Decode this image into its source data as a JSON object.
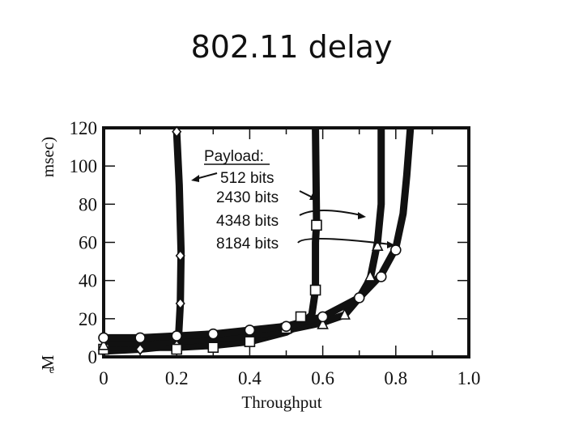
{
  "slide": {
    "title": "802.11 delay"
  },
  "chart_data": {
    "type": "line",
    "title": "802.11 delay",
    "xlabel": "Throughput",
    "ylabel_main": "msec)",
    "ylabel_fragments": [
      "M",
      "e"
    ],
    "xlim": [
      0,
      1.0
    ],
    "ylim": [
      0,
      120
    ],
    "x_ticks": [
      "0",
      "0.2",
      "0.4",
      "0.6",
      "0.8",
      "1.0"
    ],
    "y_ticks": [
      "0",
      "20",
      "40",
      "60",
      "80",
      "100",
      "120"
    ],
    "legend_title": "Payload:",
    "series": [
      {
        "name": "512 bits",
        "marker": "diamond",
        "x": [
          0,
          0.1,
          0.2,
          0.205,
          0.21,
          0.212,
          0.207,
          0.2
        ],
        "y": [
          3,
          4,
          6,
          10,
          28,
          55,
          90,
          118
        ]
      },
      {
        "name": "2430 bits",
        "marker": "square",
        "x": [
          0,
          0.2,
          0.3,
          0.4,
          0.5,
          0.54,
          0.57,
          0.58,
          0.58,
          0.583,
          0.58
        ],
        "y": [
          5,
          5,
          6,
          8,
          13,
          17,
          22,
          35,
          60,
          70,
          120
        ]
      },
      {
        "name": "4348 bits",
        "marker": "triangle",
        "x": [
          0,
          0.2,
          0.4,
          0.5,
          0.6,
          0.66,
          0.7,
          0.73,
          0.75,
          0.76,
          0.76
        ],
        "y": [
          7,
          8,
          11,
          14,
          18,
          22,
          31,
          41,
          60,
          80,
          120
        ]
      },
      {
        "name": "8184 bits",
        "marker": "circle",
        "x": [
          0,
          0.1,
          0.2,
          0.3,
          0.4,
          0.5,
          0.6,
          0.7,
          0.76,
          0.8,
          0.82,
          0.83,
          0.84
        ],
        "y": [
          10,
          10,
          11,
          12,
          14,
          16,
          21,
          31,
          43,
          57,
          75,
          95,
          120
        ]
      }
    ],
    "markers": {
      "diamond": [
        [
          0,
          3
        ],
        [
          0.1,
          4
        ],
        [
          0.2,
          6
        ],
        [
          0.21,
          28
        ],
        [
          0.21,
          53
        ],
        [
          0.2,
          118
        ]
      ],
      "square": [
        [
          0,
          4
        ],
        [
          0.2,
          4
        ],
        [
          0.3,
          5
        ],
        [
          0.4,
          8
        ],
        [
          0.5,
          15
        ],
        [
          0.54,
          21
        ],
        [
          0.58,
          35
        ],
        [
          0.583,
          69
        ]
      ],
      "triangle": [
        [
          0,
          6
        ],
        [
          0.66,
          22
        ],
        [
          0.6,
          17
        ],
        [
          0.73,
          42
        ],
        [
          0.75,
          58
        ]
      ],
      "circle": [
        [
          0,
          10
        ],
        [
          0.1,
          10
        ],
        [
          0.2,
          11
        ],
        [
          0.3,
          12
        ],
        [
          0.4,
          14
        ],
        [
          0.5,
          16
        ],
        [
          0.6,
          21
        ],
        [
          0.7,
          31
        ],
        [
          0.76,
          42
        ],
        [
          0.8,
          56
        ]
      ]
    },
    "grid": false,
    "legend_position": "top-center"
  }
}
